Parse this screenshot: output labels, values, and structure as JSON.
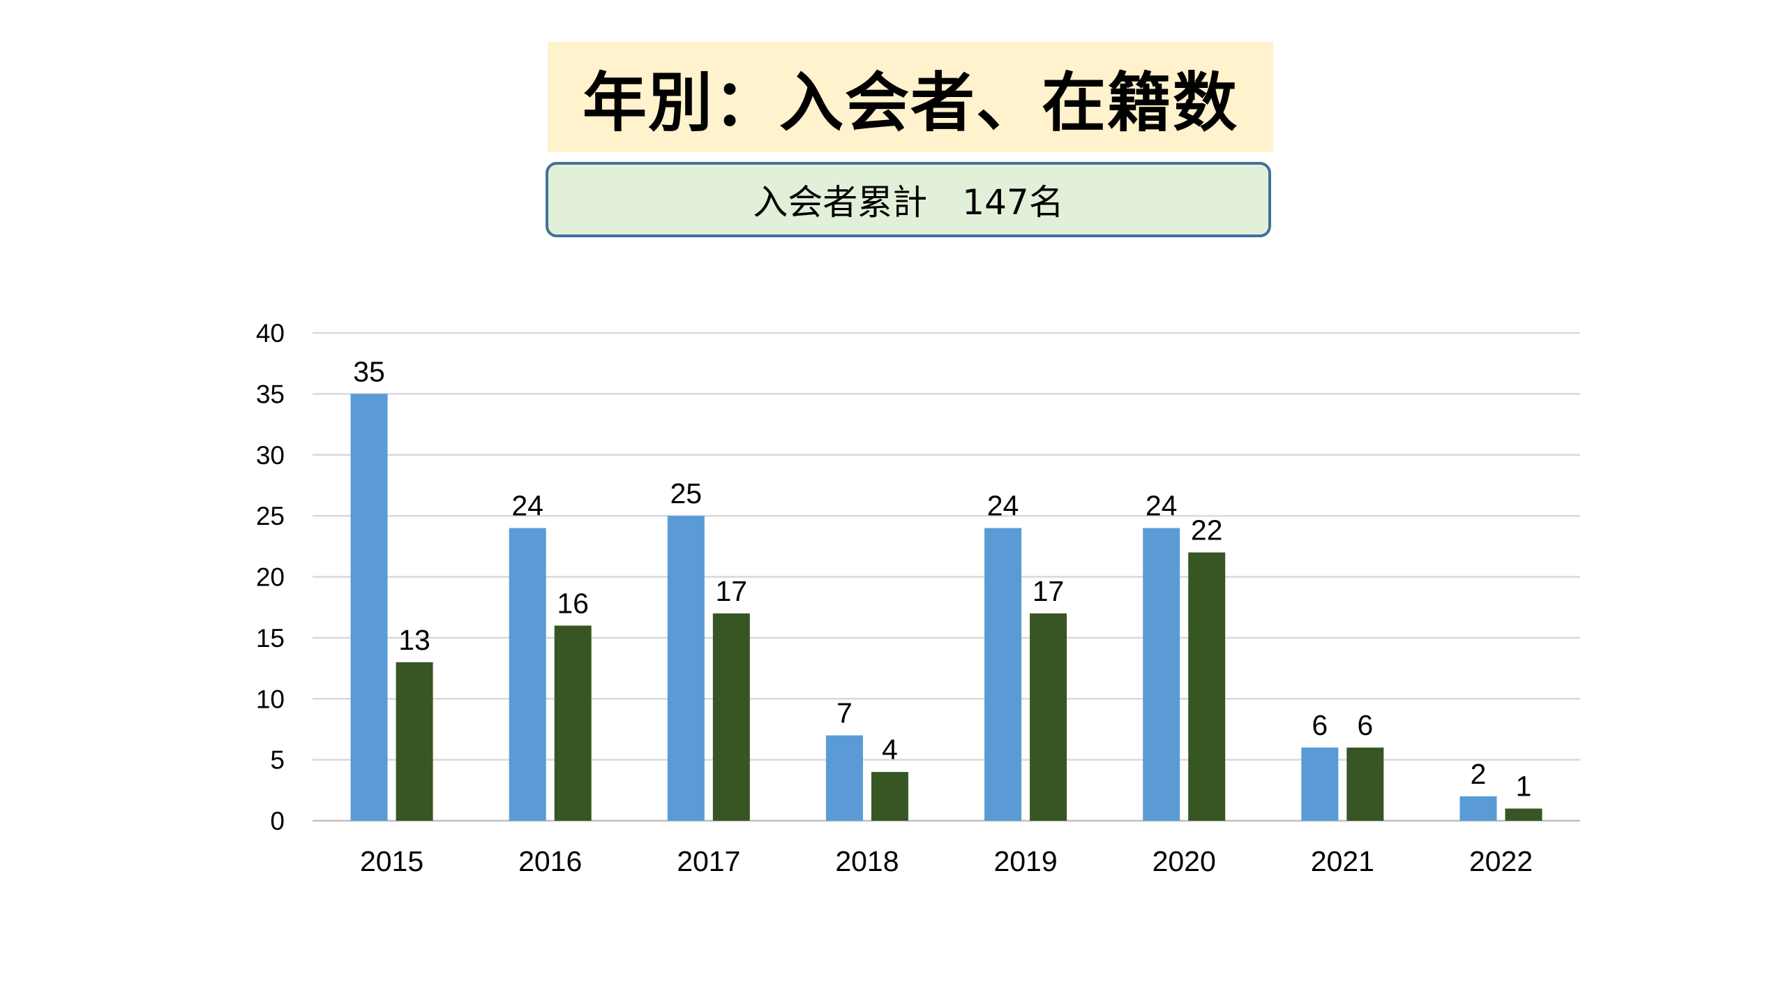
{
  "header": {
    "title": "年別：入会者、在籍数",
    "subtitle": "入会者累計　147名"
  },
  "chart_data": {
    "type": "bar",
    "categories": [
      "2015",
      "2016",
      "2017",
      "2018",
      "2019",
      "2020",
      "2021",
      "2022"
    ],
    "series": [
      {
        "values": [
          35,
          24,
          25,
          7,
          24,
          24,
          6,
          2
        ],
        "color": "#5b9bd5"
      },
      {
        "values": [
          13,
          16,
          17,
          4,
          17,
          22,
          6,
          1
        ],
        "color": "#375623"
      }
    ],
    "ylim": [
      0,
      40
    ],
    "yticks": [
      0,
      5,
      10,
      15,
      20,
      25,
      30,
      35,
      40
    ],
    "grid": true,
    "legend": "none",
    "data_labels": true
  }
}
